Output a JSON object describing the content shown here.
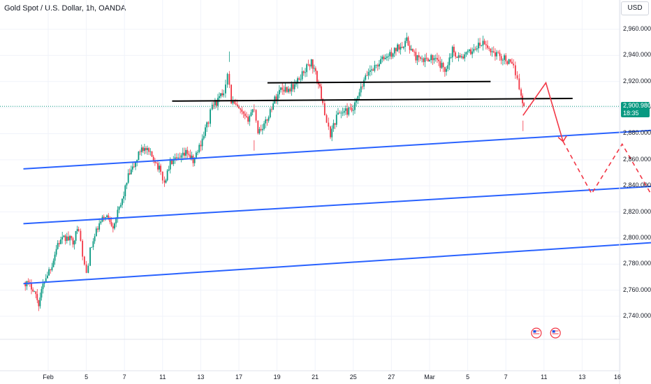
{
  "header": {
    "ticker": "Gold Spot / U.S. Dollar, 1h, OANDA",
    "currency": "USD"
  },
  "price_label": {
    "price": "2,900.980",
    "countdown": "18:35"
  },
  "chart_data": {
    "type": "candlestick",
    "title": "Gold Spot / U.S. Dollar, 1h, OANDA",
    "xlabel": "",
    "ylabel": "",
    "ylim": [
      2722,
      2977
    ],
    "y_ticks": [
      "2,960.000",
      "2,940.000",
      "2,920.000",
      "2,900.000",
      "2,880.000",
      "2,860.000",
      "2,840.000",
      "2,820.000",
      "2,800.000",
      "2,780.000",
      "2,760.000",
      "2,740.000"
    ],
    "y_tick_values": [
      2960,
      2940,
      2920,
      2900,
      2880,
      2860,
      2840,
      2820,
      2800,
      2780,
      2760,
      2740
    ],
    "x_ticks": [
      "Feb",
      "5",
      "7",
      "11",
      "13",
      "17",
      "19",
      "21",
      "25",
      "27",
      "Mar",
      "5",
      "7",
      "11",
      "13",
      "16"
    ],
    "x_tick_index": [
      0,
      2,
      4,
      6,
      8,
      10,
      12,
      14,
      16,
      18,
      20,
      22,
      24,
      26,
      28,
      30
    ],
    "last_price": 2900.98,
    "grid": true,
    "price_path": [
      [
        -1.2,
        2766
      ],
      [
        -0.8,
        2762
      ],
      [
        -0.5,
        2750
      ],
      [
        -0.2,
        2768
      ],
      [
        0.2,
        2780
      ],
      [
        0.5,
        2796
      ],
      [
        0.9,
        2800
      ],
      [
        1.3,
        2798
      ],
      [
        1.6,
        2808
      ],
      [
        1.8,
        2785
      ],
      [
        2.0,
        2773
      ],
      [
        2.2,
        2790
      ],
      [
        2.6,
        2808
      ],
      [
        3.0,
        2818
      ],
      [
        3.4,
        2810
      ],
      [
        3.8,
        2825
      ],
      [
        4.2,
        2847
      ],
      [
        4.5,
        2855
      ],
      [
        4.9,
        2870
      ],
      [
        5.2,
        2866
      ],
      [
        5.6,
        2860
      ],
      [
        5.9,
        2850
      ],
      [
        6.1,
        2842
      ],
      [
        6.4,
        2858
      ],
      [
        6.9,
        2860
      ],
      [
        7.3,
        2866
      ],
      [
        7.6,
        2858
      ],
      [
        8.0,
        2873
      ],
      [
        8.4,
        2890
      ],
      [
        8.6,
        2902
      ],
      [
        8.9,
        2905
      ],
      [
        9.2,
        2912
      ],
      [
        9.4,
        2928
      ],
      [
        9.6,
        2905
      ],
      [
        10.0,
        2898
      ],
      [
        10.4,
        2890
      ],
      [
        10.8,
        2900
      ],
      [
        11.0,
        2882
      ],
      [
        11.4,
        2888
      ],
      [
        11.8,
        2904
      ],
      [
        12.2,
        2915
      ],
      [
        12.6,
        2914
      ],
      [
        13.0,
        2918
      ],
      [
        13.4,
        2928
      ],
      [
        13.8,
        2935
      ],
      [
        14.1,
        2922
      ],
      [
        14.4,
        2905
      ],
      [
        14.6,
        2886
      ],
      [
        14.8,
        2880
      ],
      [
        15.2,
        2896
      ],
      [
        15.6,
        2897
      ],
      [
        16.0,
        2898
      ],
      [
        16.4,
        2914
      ],
      [
        16.8,
        2928
      ],
      [
        17.2,
        2932
      ],
      [
        17.6,
        2938
      ],
      [
        18.0,
        2941
      ],
      [
        18.4,
        2947
      ],
      [
        18.8,
        2951
      ],
      [
        19.2,
        2940
      ],
      [
        19.6,
        2935
      ],
      [
        20.0,
        2939
      ],
      [
        20.4,
        2935
      ],
      [
        20.8,
        2929
      ],
      [
        21.2,
        2944
      ],
      [
        21.6,
        2938
      ],
      [
        22.0,
        2941
      ],
      [
        22.4,
        2946
      ],
      [
        22.8,
        2949
      ],
      [
        23.2,
        2944
      ],
      [
        23.6,
        2940
      ],
      [
        24.0,
        2937
      ],
      [
        24.4,
        2930
      ],
      [
        24.6,
        2924
      ],
      [
        24.8,
        2908
      ],
      [
        24.95,
        2900.98
      ]
    ],
    "annotations": {
      "resistance_lines": [
        {
          "x1": 11.5,
          "y1": 2919,
          "x2": 23.2,
          "y2": 2920
        },
        {
          "x1": 6.5,
          "y1": 2905,
          "x2": 27.5,
          "y2": 2907
        }
      ],
      "channel_lines": [
        {
          "x1": -1.3,
          "y1": 2853,
          "x2": 33.3,
          "y2": 2884
        },
        {
          "x1": -1.3,
          "y1": 2811,
          "x2": 33.3,
          "y2": 2841
        },
        {
          "x1": -1.3,
          "y1": 2765,
          "x2": 33.3,
          "y2": 2798
        }
      ],
      "forecast_solid": [
        [
          24.9,
          2894
        ],
        [
          26.1,
          2919
        ],
        [
          27.0,
          2874
        ]
      ],
      "forecast_dashed": [
        [
          27.0,
          2874
        ],
        [
          28.5,
          2834
        ],
        [
          30.1,
          2872
        ],
        [
          31.6,
          2834
        ],
        [
          33.0,
          2800
        ],
        [
          33.2,
          2808
        ]
      ],
      "event_markers": [
        {
          "x": 25.6,
          "country": "US"
        },
        {
          "x": 26.6,
          "country": "US"
        }
      ]
    },
    "colors": {
      "up": "#089981",
      "down": "#f23645",
      "channel": "#2962ff",
      "resistance": "#000000",
      "forecast": "#f23645",
      "last_price_line": "#089981"
    }
  }
}
